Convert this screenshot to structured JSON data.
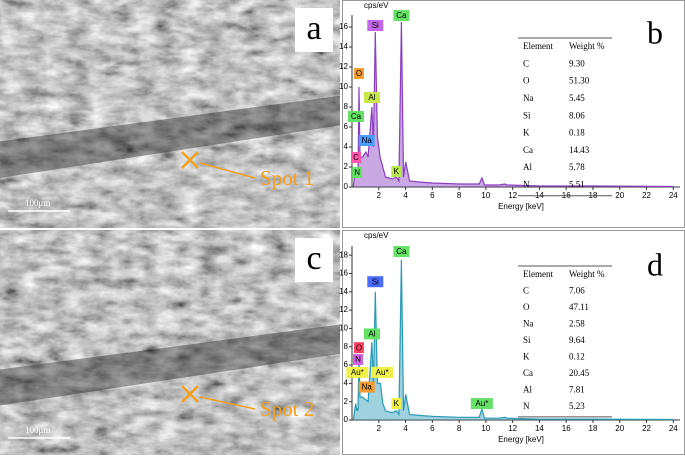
{
  "panels": [
    {
      "letter": "a",
      "spot": "Spot 1",
      "scale": "100μm"
    },
    {
      "letter": "c",
      "spot": "Spot 2",
      "scale": "100μm"
    }
  ],
  "spectrum_letters": [
    "b",
    "d"
  ],
  "tables": [
    {
      "columns": [
        "Element",
        "Weight %"
      ],
      "rows": [
        [
          "C",
          "9.30"
        ],
        [
          "O",
          "51.30"
        ],
        [
          "Na",
          "5.45"
        ],
        [
          "Si",
          "8.06"
        ],
        [
          "K",
          "0.18"
        ],
        [
          "Ca",
          "14.43"
        ],
        [
          "Al",
          "5.78"
        ],
        [
          "N",
          "5.51"
        ]
      ]
    },
    {
      "columns": [
        "Element",
        "Weight %"
      ],
      "rows": [
        [
          "C",
          "7.06"
        ],
        [
          "O",
          "47.11"
        ],
        [
          "Na",
          "2.58"
        ],
        [
          "Si",
          "9.64"
        ],
        [
          "K",
          "0.12"
        ],
        [
          "Ca",
          "20.45"
        ],
        [
          "Al",
          "7.81"
        ],
        [
          "N",
          "5.23"
        ]
      ]
    }
  ],
  "chart_data": [
    {
      "type": "line",
      "y_label": "cps/eV",
      "x_label": "Energy [keV]",
      "xlim": [
        0,
        24.5
      ],
      "ylim": [
        0,
        17.2
      ],
      "xticks": [
        2,
        4,
        6,
        8,
        10,
        12,
        14,
        16,
        18,
        20,
        22,
        24
      ],
      "yticks": [
        0,
        2,
        4,
        6,
        8,
        10,
        12,
        14,
        16
      ],
      "x": [
        0.1,
        0.28,
        0.35,
        0.39,
        0.45,
        0.52,
        0.6,
        0.8,
        1.04,
        1.2,
        1.49,
        1.6,
        1.74,
        1.9,
        2.1,
        2.3,
        2.5,
        3.0,
        3.31,
        3.5,
        3.69,
        3.85,
        4.01,
        4.3,
        5,
        6,
        8,
        9.5,
        9.7,
        9.9,
        11,
        11.4,
        11.6,
        14,
        18,
        24
      ],
      "series": [
        {
          "color": "#8a3fbf",
          "values": [
            0,
            2,
            1,
            1.5,
            1,
            10,
            3,
            3,
            3.5,
            3,
            8,
            4,
            15.5,
            5,
            3,
            2,
            1,
            0.8,
            1,
            0.6,
            16.5,
            1,
            2.5,
            0.6,
            0.5,
            0.4,
            0.3,
            0.3,
            0.9,
            0.2,
            0.2,
            0.3,
            0.2,
            0.1,
            0.1,
            0.05
          ]
        }
      ],
      "annotations": [
        {
          "text": "Si",
          "x": 1.74,
          "y": 15.6,
          "color": "#c466e8"
        },
        {
          "text": "Ca",
          "x": 3.69,
          "y": 16.6,
          "color": "#66e066"
        },
        {
          "text": "O",
          "x": 0.52,
          "y": 10.8,
          "color": "#f39c33"
        },
        {
          "text": "Al",
          "x": 1.49,
          "y": 8.4,
          "color": "#c8e84a"
        },
        {
          "text": "Ca",
          "x": 0.3,
          "y": 6.5,
          "color": "#66e066"
        },
        {
          "text": "Na",
          "x": 1.1,
          "y": 4.1,
          "color": "#4a9cff"
        },
        {
          "text": "C",
          "x": 0.3,
          "y": 2.4,
          "color": "#ff55aa"
        },
        {
          "text": "N",
          "x": 0.38,
          "y": 0.9,
          "color": "#66e066"
        },
        {
          "text": "K",
          "x": 3.31,
          "y": 1.0,
          "color": "#b8e84a"
        }
      ]
    },
    {
      "type": "line",
      "y_label": "cps/eV",
      "x_label": "Energy [keV]",
      "xlim": [
        0,
        24.5
      ],
      "ylim": [
        0,
        19
      ],
      "xticks": [
        2,
        4,
        6,
        8,
        10,
        12,
        14,
        16,
        18,
        20,
        22,
        24
      ],
      "yticks": [
        0,
        2,
        4,
        6,
        8,
        10,
        12,
        14,
        16,
        18
      ],
      "x": [
        0.1,
        0.28,
        0.35,
        0.39,
        0.45,
        0.52,
        0.6,
        0.8,
        1.04,
        1.2,
        1.49,
        1.6,
        1.74,
        1.9,
        2.12,
        2.3,
        2.5,
        3.0,
        3.31,
        3.5,
        3.69,
        3.85,
        4.01,
        4.3,
        5,
        6,
        8,
        9.5,
        9.7,
        9.9,
        11,
        11.4,
        11.6,
        14,
        18,
        24
      ],
      "series": [
        {
          "color": "#2a9ab5",
          "values": [
            0,
            1.8,
            1,
            1.3,
            1,
            7,
            2.5,
            2.5,
            2.2,
            2,
            8.5,
            3.5,
            14,
            4,
            4,
            1.8,
            1,
            0.8,
            1,
            0.6,
            17.5,
            1,
            2.8,
            0.6,
            0.5,
            0.4,
            0.3,
            0.3,
            1.2,
            0.2,
            0.2,
            0.3,
            0.2,
            0.1,
            0.1,
            0.05
          ]
        }
      ],
      "annotations": [
        {
          "text": "Ca",
          "x": 3.69,
          "y": 17.8,
          "color": "#66e066"
        },
        {
          "text": "Si",
          "x": 1.74,
          "y": 14.5,
          "color": "#4a6cff"
        },
        {
          "text": "Al",
          "x": 1.49,
          "y": 8.8,
          "color": "#66e066"
        },
        {
          "text": "O",
          "x": 0.52,
          "y": 7.3,
          "color": "#ff4466"
        },
        {
          "text": "N",
          "x": 0.45,
          "y": 6.0,
          "color": "#d060e0"
        },
        {
          "text": "Au*",
          "x": 0.4,
          "y": 4.6,
          "color": "#f0f04a"
        },
        {
          "text": "Au*",
          "x": 2.25,
          "y": 4.6,
          "color": "#f0f04a"
        },
        {
          "text": "Na",
          "x": 1.1,
          "y": 3.0,
          "color": "#f39c33"
        },
        {
          "text": "K",
          "x": 3.31,
          "y": 1.2,
          "color": "#f0f04a"
        },
        {
          "text": "Au*",
          "x": 9.7,
          "y": 1.2,
          "color": "#66e066"
        }
      ]
    }
  ]
}
